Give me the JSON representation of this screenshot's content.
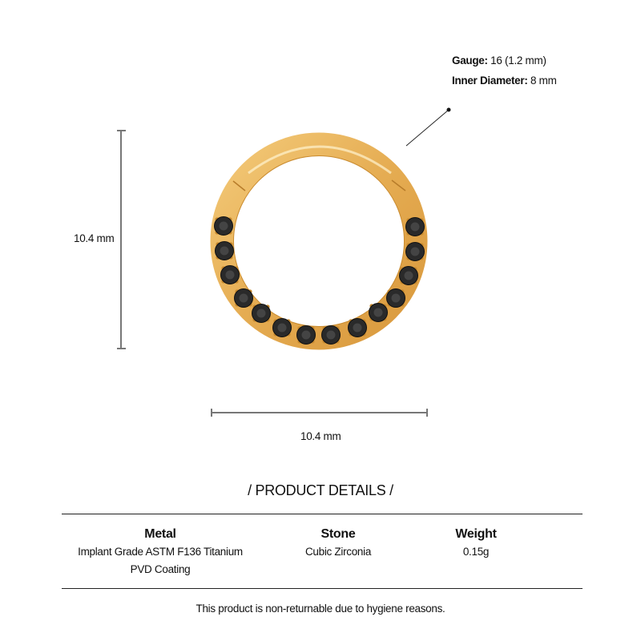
{
  "specs": {
    "gauge_label": "Gauge:",
    "gauge_value": " 16 (1.2 mm)",
    "inner_diameter_label": "Inner Diameter:",
    "inner_diameter_value": " 8 mm"
  },
  "dimensions": {
    "height": "10.4 mm",
    "width": "10.4 mm"
  },
  "product": {
    "stone_count": 14,
    "colors": {
      "gold": "#e8b25a",
      "gold_dark": "#c98b2f",
      "stone": "#2a2a2a",
      "dim_line": "#777777"
    }
  },
  "details": {
    "title": "/ PRODUCT DETAILS /",
    "columns": [
      {
        "heading": "Metal",
        "lines": [
          "Implant Grade ASTM F136 Titanium",
          "PVD Coating"
        ]
      },
      {
        "heading": "Stone",
        "lines": [
          "Cubic Zirconia"
        ]
      },
      {
        "heading": "Weight",
        "lines": [
          "0.15g"
        ]
      }
    ],
    "note": "This product is non-returnable due to hygiene reasons."
  }
}
